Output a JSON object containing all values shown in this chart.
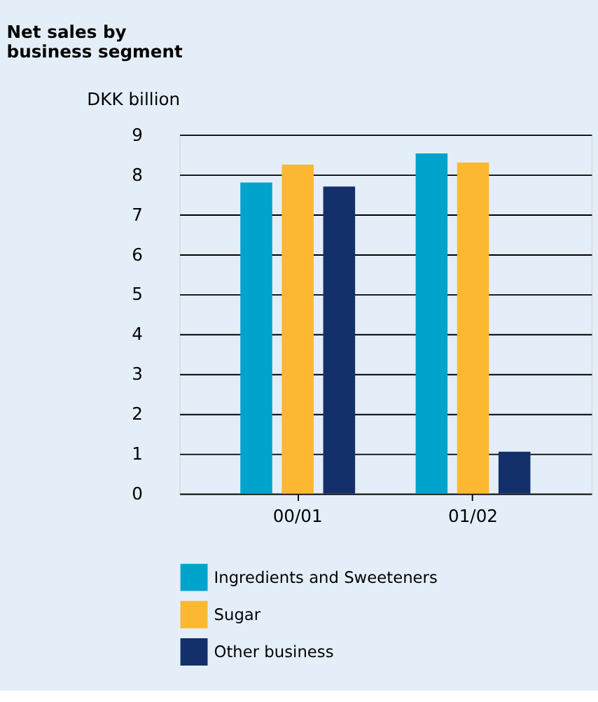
{
  "chart_data": {
    "type": "bar",
    "title": "Net sales by\nbusiness segment",
    "ylabel": "DKK billion",
    "categories": [
      "00/01",
      "01/02"
    ],
    "series": [
      {
        "name": "Ingredients and Sweeteners",
        "color": "#00a3cc",
        "values": [
          7.8,
          8.53
        ]
      },
      {
        "name": "Sugar",
        "color": "#fbb830",
        "values": [
          8.25,
          8.3
        ]
      },
      {
        "name": "Other business",
        "color": "#14306a",
        "values": [
          7.7,
          1.05
        ]
      }
    ],
    "ylim": [
      0,
      9
    ],
    "yticks": [
      0,
      1,
      2,
      3,
      4,
      5,
      6,
      7,
      8,
      9
    ],
    "grid": "y",
    "legend": "bottom"
  }
}
